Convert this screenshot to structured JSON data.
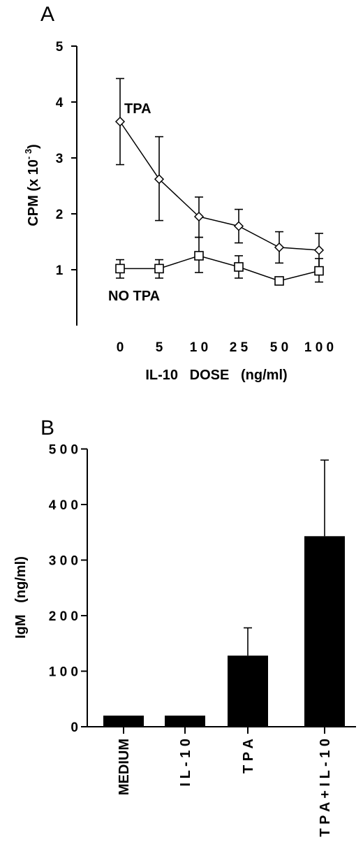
{
  "chart_data": [
    {
      "panel": "A",
      "type": "line",
      "ylabel": "CPM (x 10",
      "ylabel_exp": "- 3",
      "ylabel_close": ")",
      "xlabel": "IL-10   DOSE   (ng/ml)",
      "ylim": [
        0,
        5
      ],
      "yticks": [
        "1",
        "2",
        "3",
        "4",
        "5"
      ],
      "categories": [
        "0",
        "5",
        "1 0",
        "2 5",
        "5 0",
        "1 0 0"
      ],
      "series": [
        {
          "name": "TPA",
          "marker": "diamond",
          "values": [
            3.65,
            2.62,
            1.95,
            1.78,
            1.4,
            1.35
          ],
          "err_upper": [
            4.42,
            3.38,
            2.3,
            2.08,
            1.68,
            1.65
          ],
          "err_lower": [
            2.88,
            1.88,
            1.58,
            1.48,
            1.12,
            1.05
          ]
        },
        {
          "name": "NO  TPA",
          "marker": "square",
          "values": [
            1.02,
            1.02,
            1.25,
            1.05,
            0.8,
            0.98
          ],
          "err_upper": [
            1.18,
            1.18,
            1.58,
            1.25,
            0.8,
            1.2
          ],
          "err_lower": [
            0.85,
            0.85,
            0.95,
            0.85,
            0.8,
            0.78
          ]
        }
      ]
    },
    {
      "panel": "B",
      "type": "bar",
      "ylabel": "IgM   (ng/ml)",
      "ylim": [
        0,
        500
      ],
      "yticks": [
        "0",
        "1 0 0",
        "2 0 0",
        "3 0 0",
        "4 0 0",
        "5 0 0"
      ],
      "categories": [
        "MEDIUM",
        "I L - 1 0",
        "T P A",
        "T P A   +   I L - 1 0"
      ],
      "values": [
        20,
        20,
        128,
        343
      ],
      "err_upper": [
        20,
        20,
        178,
        480
      ]
    }
  ]
}
